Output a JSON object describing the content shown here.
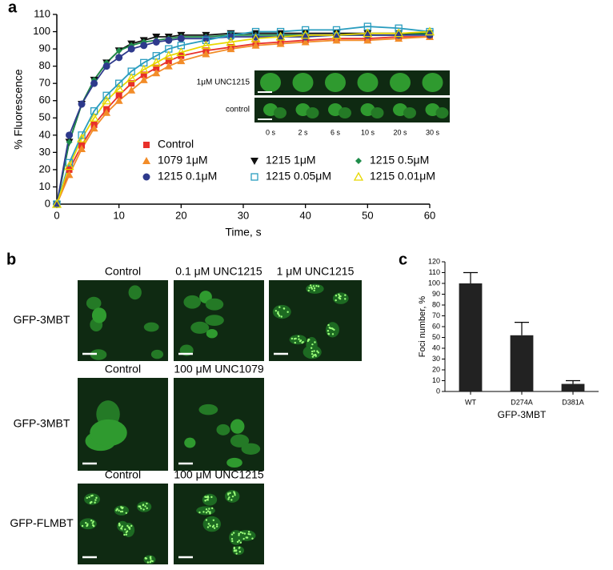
{
  "chart_data": [
    {
      "type": "line",
      "xlabel": "Time, s",
      "ylabel": "% Fluorescence",
      "x": [
        0,
        2,
        4,
        6,
        8,
        10,
        12,
        14,
        16,
        18,
        20,
        24,
        28,
        32,
        36,
        40,
        45,
        50,
        55,
        60
      ],
      "xlim": [
        0,
        60
      ],
      "xticks": [
        0,
        10,
        20,
        30,
        40,
        50,
        60
      ],
      "ylim": [
        0,
        110
      ],
      "yticks": [
        0,
        10,
        20,
        30,
        40,
        50,
        60,
        70,
        80,
        90,
        100,
        110
      ],
      "series": [
        {
          "name": "Control",
          "color": "#e8302a",
          "marker": "square",
          "values": [
            0,
            20,
            34,
            46,
            55,
            63,
            70,
            75,
            79,
            83,
            86,
            89,
            91,
            93,
            94,
            95,
            96,
            96,
            97,
            97
          ]
        },
        {
          "name": "1079 1μM",
          "color": "#f28c28",
          "marker": "triangle",
          "values": [
            0,
            17,
            32,
            44,
            53,
            60,
            66,
            72,
            76,
            80,
            83,
            87,
            90,
            92,
            93,
            94,
            95,
            95,
            96,
            97
          ]
        },
        {
          "name": "1215 1μM",
          "color": "#111111",
          "marker": "triangle-down",
          "values": [
            0,
            36,
            58,
            72,
            82,
            89,
            93,
            95,
            97,
            97,
            98,
            98,
            99,
            99,
            99,
            99,
            99,
            99,
            99,
            99
          ]
        },
        {
          "name": "1215 0.5μM",
          "color": "#1e8c4a",
          "marker": "diamond",
          "values": [
            0,
            36,
            58,
            72,
            82,
            89,
            92,
            94,
            95,
            96,
            97,
            97,
            98,
            98,
            98,
            98,
            98,
            98,
            98,
            99
          ]
        },
        {
          "name": "1215 0.1μM",
          "color": "#2e3a8c",
          "marker": "circle",
          "values": [
            0,
            40,
            58,
            70,
            80,
            85,
            90,
            92,
            94,
            95,
            96,
            96,
            97,
            97,
            97,
            97,
            98,
            98,
            98,
            98
          ]
        },
        {
          "name": "1215 0.05μM",
          "color": "#2a9dbf",
          "marker": "open-square",
          "values": [
            0,
            24,
            40,
            54,
            63,
            70,
            77,
            82,
            86,
            90,
            92,
            95,
            98,
            100,
            100,
            101,
            101,
            103,
            102,
            100
          ]
        },
        {
          "name": "1215 0.01μM",
          "color": "#e8d800",
          "marker": "open-triangle",
          "values": [
            0,
            22,
            38,
            50,
            60,
            67,
            73,
            78,
            82,
            86,
            88,
            92,
            94,
            96,
            97,
            98,
            98,
            99,
            99,
            100
          ]
        }
      ]
    },
    {
      "type": "bar",
      "xlabel": "GFP-3MBT",
      "ylabel": "Foci number, %",
      "categories": [
        "WT",
        "D274A",
        "D381A"
      ],
      "values": [
        100,
        52,
        7
      ],
      "errors": [
        10,
        12,
        3
      ],
      "color": "#222222",
      "ylim": [
        0,
        120
      ],
      "yticks": [
        0,
        10,
        20,
        30,
        40,
        50,
        60,
        70,
        80,
        90,
        100,
        110,
        120
      ]
    }
  ],
  "figure": {
    "panel_labels": [
      "a",
      "b",
      "c"
    ],
    "inset": {
      "rows": [
        "1μM UNC1215",
        "control"
      ],
      "times": [
        "0 s",
        "2 s",
        "6 s",
        "10 s",
        "20 s",
        "30 s"
      ]
    },
    "panel_b": {
      "rows": [
        {
          "label": "GFP-3MBT",
          "columns": [
            "Control",
            "0.1 μM UNC1215",
            "1 μM UNC1215"
          ]
        },
        {
          "label": "GFP-3MBT",
          "columns": [
            "Control",
            "100 μM UNC1079"
          ]
        },
        {
          "label": "GFP-FLMBT",
          "columns": [
            "Control",
            "100 μM UNC1215"
          ]
        }
      ]
    }
  }
}
